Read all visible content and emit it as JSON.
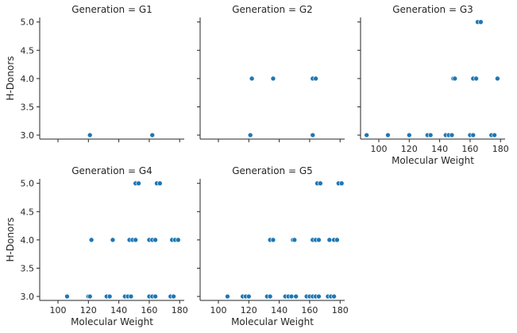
{
  "chart_data": {
    "type": "scatter",
    "xlabel": "Molecular Weight",
    "ylabel": "H-Donors",
    "xlim": [
      88,
      183
    ],
    "ylim": [
      2.93,
      5.08
    ],
    "xticks": [
      100,
      120,
      140,
      160,
      180
    ],
    "yticks": [
      3.0,
      3.5,
      4.0,
      4.5,
      5.0
    ],
    "xtick_labels": [
      "100",
      "120",
      "140",
      "160",
      "180"
    ],
    "ytick_labels": [
      "3.0",
      "3.5",
      "4.0",
      "4.5",
      "5.0"
    ],
    "grid": false,
    "point_color": "#1f77b4",
    "panels": [
      {
        "title": "Generation = G1",
        "points": [
          [
            121,
            3
          ],
          [
            162,
            3
          ]
        ]
      },
      {
        "title": "Generation = G2",
        "points": [
          [
            121,
            3
          ],
          [
            122,
            4
          ],
          [
            136,
            4
          ],
          [
            162,
            3
          ],
          [
            162,
            4
          ],
          [
            164,
            4
          ]
        ]
      },
      {
        "title": "Generation = G3",
        "points": [
          [
            92,
            3
          ],
          [
            106,
            3
          ],
          [
            120,
            3
          ],
          [
            132,
            3
          ],
          [
            134,
            3
          ],
          [
            144,
            3
          ],
          [
            146,
            3
          ],
          [
            148,
            3
          ],
          [
            149,
            4
          ],
          [
            150,
            4
          ],
          [
            160,
            3
          ],
          [
            162,
            3
          ],
          [
            162,
            4
          ],
          [
            164,
            4
          ],
          [
            165,
            5
          ],
          [
            167,
            5
          ],
          [
            174,
            3
          ],
          [
            176,
            3
          ],
          [
            178,
            4
          ]
        ]
      },
      {
        "title": "Generation = G4",
        "points": [
          [
            106,
            3
          ],
          [
            120,
            3
          ],
          [
            121,
            3
          ],
          [
            122,
            4
          ],
          [
            132,
            3
          ],
          [
            134,
            3
          ],
          [
            136,
            4
          ],
          [
            144,
            3
          ],
          [
            146,
            3
          ],
          [
            147,
            4
          ],
          [
            148,
            3
          ],
          [
            149,
            4
          ],
          [
            151,
            4
          ],
          [
            151,
            5
          ],
          [
            153,
            5
          ],
          [
            160,
            3
          ],
          [
            160,
            4
          ],
          [
            162,
            3
          ],
          [
            162,
            4
          ],
          [
            164,
            3
          ],
          [
            164,
            4
          ],
          [
            165,
            5
          ],
          [
            167,
            5
          ],
          [
            174,
            3
          ],
          [
            175,
            4
          ],
          [
            176,
            3
          ],
          [
            177,
            4
          ],
          [
            179,
            4
          ]
        ]
      },
      {
        "title": "Generation = G5",
        "points": [
          [
            106,
            3
          ],
          [
            116,
            3
          ],
          [
            118,
            3
          ],
          [
            120,
            3
          ],
          [
            132,
            3
          ],
          [
            134,
            3
          ],
          [
            134,
            4
          ],
          [
            136,
            4
          ],
          [
            144,
            3
          ],
          [
            146,
            3
          ],
          [
            148,
            3
          ],
          [
            149,
            4
          ],
          [
            150,
            4
          ],
          [
            151,
            3
          ],
          [
            158,
            3
          ],
          [
            160,
            3
          ],
          [
            162,
            3
          ],
          [
            162,
            4
          ],
          [
            164,
            3
          ],
          [
            164,
            4
          ],
          [
            165,
            5
          ],
          [
            166,
            3
          ],
          [
            166,
            4
          ],
          [
            167,
            5
          ],
          [
            172,
            3
          ],
          [
            173,
            4
          ],
          [
            174,
            3
          ],
          [
            176,
            3
          ],
          [
            176,
            4
          ],
          [
            178,
            4
          ],
          [
            179,
            5
          ],
          [
            181,
            5
          ]
        ]
      }
    ]
  }
}
